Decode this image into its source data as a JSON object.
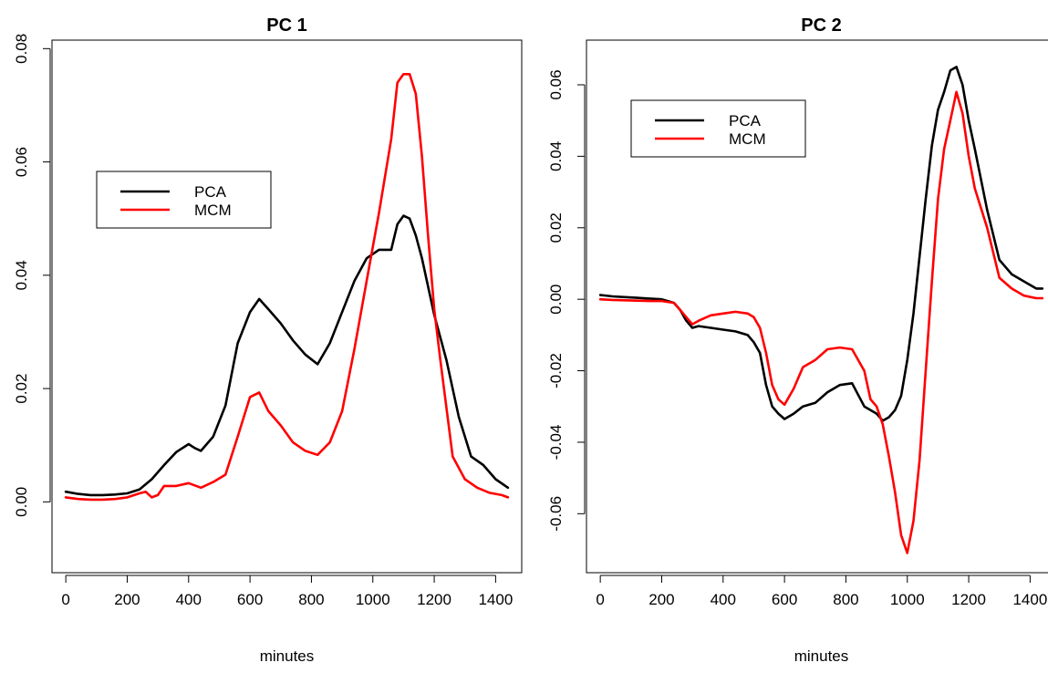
{
  "chart_data": [
    {
      "type": "line",
      "title": "PC 1",
      "xlabel": "minutes",
      "ylabel": "",
      "xlim": [
        -45,
        1485
      ],
      "ylim": [
        -0.0125,
        0.0815
      ],
      "xticks": [
        0,
        200,
        400,
        600,
        800,
        1000,
        1200,
        1400
      ],
      "xtick_labels": [
        "0",
        "200",
        "400",
        "600",
        "800",
        "1000",
        "1200",
        "1400"
      ],
      "yticks": [
        0.0,
        0.02,
        0.04,
        0.06,
        0.08
      ],
      "ytick_labels": [
        "0.00",
        "0.02",
        "0.04",
        "0.06",
        "0.08"
      ],
      "grid": false,
      "legend": {
        "placement": "top-left",
        "entries": [
          "PCA",
          "MCM"
        ]
      },
      "series": [
        {
          "name": "PCA",
          "color": "#000000",
          "x": [
            0,
            40,
            80,
            120,
            160,
            200,
            240,
            280,
            320,
            360,
            400,
            420,
            440,
            480,
            520,
            560,
            600,
            630,
            660,
            700,
            740,
            780,
            820,
            860,
            900,
            940,
            980,
            1020,
            1060,
            1080,
            1100,
            1120,
            1140,
            1160,
            1200,
            1240,
            1280,
            1320,
            1360,
            1400,
            1440
          ],
          "y": [
            0.0018,
            0.0014,
            0.0012,
            0.0012,
            0.0013,
            0.0015,
            0.0022,
            0.004,
            0.0065,
            0.0088,
            0.0102,
            0.0095,
            0.009,
            0.0115,
            0.017,
            0.028,
            0.0335,
            0.0358,
            0.034,
            0.0315,
            0.0285,
            0.026,
            0.0243,
            0.028,
            0.0335,
            0.039,
            0.043,
            0.0445,
            0.0445,
            0.049,
            0.0505,
            0.05,
            0.047,
            0.043,
            0.033,
            0.025,
            0.015,
            0.008,
            0.0065,
            0.004,
            0.0025
          ]
        },
        {
          "name": "MCM",
          "color": "#ff0000",
          "x": [
            0,
            40,
            80,
            120,
            160,
            200,
            240,
            260,
            280,
            300,
            320,
            360,
            400,
            440,
            480,
            520,
            560,
            600,
            630,
            660,
            700,
            740,
            780,
            820,
            860,
            900,
            940,
            980,
            1020,
            1060,
            1080,
            1100,
            1120,
            1140,
            1160,
            1180,
            1200,
            1220,
            1260,
            1300,
            1340,
            1380,
            1420,
            1440
          ],
          "y": [
            0.0008,
            0.0005,
            0.0004,
            0.0004,
            0.0005,
            0.0008,
            0.0015,
            0.0018,
            0.0008,
            0.0012,
            0.0028,
            0.0028,
            0.0033,
            0.0025,
            0.0035,
            0.0048,
            0.0115,
            0.0185,
            0.0193,
            0.016,
            0.0135,
            0.0105,
            0.009,
            0.0083,
            0.0105,
            0.016,
            0.027,
            0.039,
            0.051,
            0.064,
            0.074,
            0.0755,
            0.0755,
            0.072,
            0.061,
            0.047,
            0.034,
            0.025,
            0.008,
            0.004,
            0.0025,
            0.0016,
            0.0012,
            0.0008
          ]
        }
      ]
    },
    {
      "type": "line",
      "title": "PC 2",
      "xlabel": "minutes",
      "ylabel": "",
      "xlim": [
        -45,
        1485
      ],
      "ylim": [
        -0.0765,
        0.0725
      ],
      "xticks": [
        0,
        200,
        400,
        600,
        800,
        1000,
        1200,
        1400
      ],
      "xtick_labels": [
        "0",
        "200",
        "400",
        "600",
        "800",
        "1000",
        "1200",
        "1400"
      ],
      "yticks": [
        -0.06,
        -0.04,
        -0.02,
        0.0,
        0.02,
        0.04,
        0.06
      ],
      "ytick_labels": [
        "-0.06",
        "-0.04",
        "-0.02",
        "0.00",
        "0.02",
        "0.04",
        "0.06"
      ],
      "grid": false,
      "legend": {
        "placement": "top-left",
        "entries": [
          "PCA",
          "MCM"
        ]
      },
      "series": [
        {
          "name": "PCA",
          "color": "#000000",
          "x": [
            0,
            40,
            80,
            120,
            160,
            200,
            240,
            260,
            280,
            300,
            320,
            360,
            400,
            440,
            480,
            500,
            520,
            540,
            560,
            580,
            600,
            630,
            660,
            700,
            740,
            780,
            820,
            860,
            900,
            920,
            940,
            960,
            980,
            1000,
            1020,
            1040,
            1060,
            1080,
            1100,
            1120,
            1140,
            1160,
            1180,
            1200,
            1220,
            1260,
            1300,
            1340,
            1380,
            1420,
            1440
          ],
          "y": [
            0.0012,
            0.0008,
            0.0006,
            0.0004,
            0.0002,
            0.0,
            -0.001,
            -0.003,
            -0.006,
            -0.008,
            -0.0075,
            -0.008,
            -0.0085,
            -0.009,
            -0.01,
            -0.012,
            -0.015,
            -0.024,
            -0.03,
            -0.032,
            -0.0335,
            -0.032,
            -0.03,
            -0.029,
            -0.026,
            -0.024,
            -0.0235,
            -0.03,
            -0.032,
            -0.034,
            -0.033,
            -0.031,
            -0.027,
            -0.017,
            -0.004,
            0.012,
            0.028,
            0.043,
            0.053,
            0.058,
            0.064,
            0.065,
            0.06,
            0.05,
            0.042,
            0.025,
            0.011,
            0.007,
            0.005,
            0.003,
            0.003
          ]
        },
        {
          "name": "MCM",
          "color": "#ff0000",
          "x": [
            0,
            40,
            80,
            120,
            160,
            200,
            240,
            260,
            280,
            300,
            320,
            360,
            400,
            440,
            480,
            500,
            520,
            540,
            560,
            580,
            600,
            630,
            660,
            700,
            740,
            780,
            820,
            860,
            880,
            900,
            920,
            940,
            960,
            980,
            1000,
            1020,
            1040,
            1060,
            1080,
            1100,
            1120,
            1140,
            1160,
            1180,
            1200,
            1220,
            1260,
            1300,
            1340,
            1380,
            1420,
            1440
          ],
          "y": [
            0.0,
            -0.0002,
            -0.0003,
            -0.0004,
            -0.0005,
            -0.0005,
            -0.001,
            -0.003,
            -0.005,
            -0.007,
            -0.006,
            -0.0045,
            -0.004,
            -0.0035,
            -0.004,
            -0.005,
            -0.008,
            -0.015,
            -0.024,
            -0.028,
            -0.0295,
            -0.025,
            -0.019,
            -0.017,
            -0.014,
            -0.0135,
            -0.014,
            -0.02,
            -0.028,
            -0.03,
            -0.035,
            -0.044,
            -0.054,
            -0.066,
            -0.071,
            -0.062,
            -0.045,
            -0.02,
            0.005,
            0.028,
            0.042,
            0.05,
            0.058,
            0.052,
            0.04,
            0.031,
            0.02,
            0.006,
            0.003,
            0.001,
            0.0003,
            0.0003
          ]
        }
      ]
    }
  ]
}
